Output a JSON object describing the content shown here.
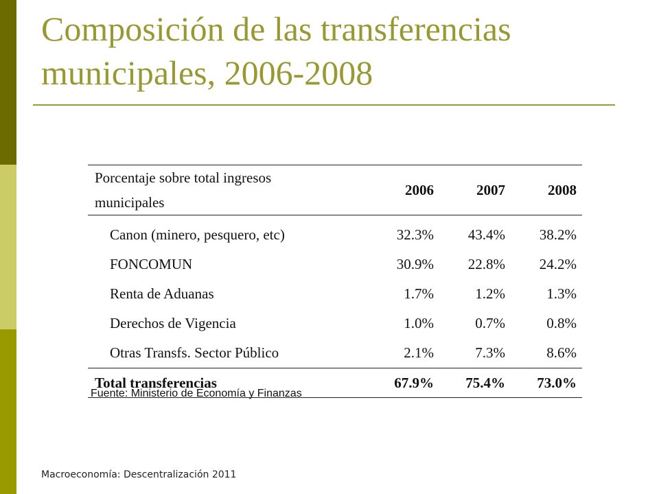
{
  "slide": {
    "title_line1": "Composición de las transferencias",
    "title_line2": "municipales, 2006-2008",
    "source": "Fuente: Ministerio de Economía y Finanzas",
    "footer": "Macroeconomía: Descentralización 2011",
    "colors": {
      "accent": "#999933",
      "bar_dark": "#6b6b00",
      "bar_light": "#cccc66",
      "bar_mid": "#999900"
    }
  },
  "table": {
    "header_line1": "Porcentaje sobre total ingresos",
    "header_line2": "municipales",
    "years": [
      "2006",
      "2007",
      "2008"
    ],
    "rows": [
      {
        "label": "Canon (minero, pesquero, etc)",
        "values": [
          "32.3%",
          "43.4%",
          "38.2%"
        ]
      },
      {
        "label": "FONCOMUN",
        "values": [
          "30.9%",
          "22.8%",
          "24.2%"
        ]
      },
      {
        "label": "Renta de Aduanas",
        "values": [
          "1.7%",
          "1.2%",
          "1.3%"
        ]
      },
      {
        "label": "Derechos de Vigencia",
        "values": [
          "1.0%",
          "0.7%",
          "0.8%"
        ]
      },
      {
        "label": "Otras Transfs. Sector Público",
        "values": [
          "2.1%",
          "7.3%",
          "8.6%"
        ]
      }
    ],
    "total": {
      "label": "Total transferencias",
      "values": [
        "67.9%",
        "75.4%",
        "73.0%"
      ]
    }
  }
}
